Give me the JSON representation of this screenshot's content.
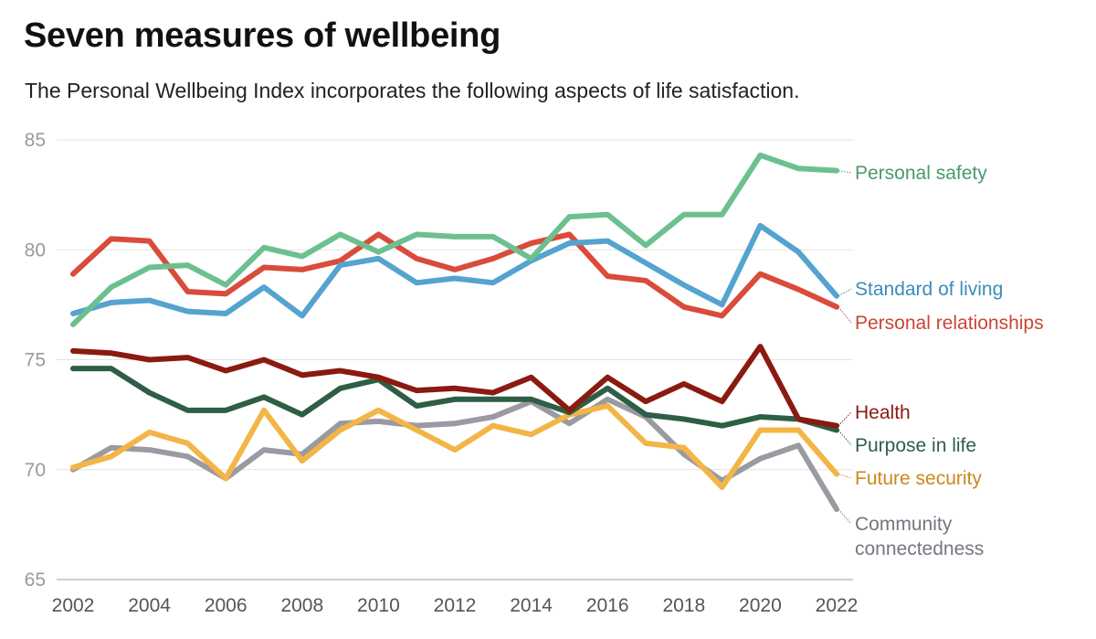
{
  "header": {
    "title": "Seven measures of wellbeing",
    "subtitle": "The Personal Wellbeing Index incorporates the following aspects of life satisfaction."
  },
  "chart_data": {
    "type": "line",
    "title": "Seven measures of wellbeing",
    "subtitle": "The Personal Wellbeing Index incorporates the following aspects of life satisfaction.",
    "x": [
      2002,
      2003,
      2004,
      2005,
      2006,
      2007,
      2008,
      2009,
      2010,
      2011,
      2012,
      2013,
      2014,
      2015,
      2016,
      2017,
      2018,
      2019,
      2020,
      2021,
      2022
    ],
    "x_ticks": [
      2002,
      2004,
      2006,
      2008,
      2010,
      2012,
      2014,
      2016,
      2018,
      2020,
      2022
    ],
    "y_ticks": [
      65,
      70,
      75,
      80,
      85
    ],
    "ylim": [
      65,
      85
    ],
    "grid": "horizontal",
    "legend": "direct labels at right end of lines",
    "series": [
      {
        "name": "Personal safety",
        "color": "#6cc08f",
        "text_color": "#4a9a6b",
        "values": [
          76.6,
          78.3,
          79.2,
          79.3,
          78.4,
          80.1,
          79.7,
          80.7,
          79.9,
          80.7,
          80.6,
          80.6,
          79.6,
          81.5,
          81.6,
          80.2,
          81.6,
          81.6,
          84.3,
          83.7,
          83.6
        ]
      },
      {
        "name": "Standard of living",
        "color": "#55a3cf",
        "text_color": "#3d8cb8",
        "values": [
          77.1,
          77.6,
          77.7,
          77.2,
          77.1,
          78.3,
          77.0,
          79.3,
          79.6,
          78.5,
          78.7,
          78.5,
          79.5,
          80.3,
          80.4,
          79.4,
          78.4,
          77.5,
          81.1,
          79.9,
          77.9
        ]
      },
      {
        "name": "Personal relationships",
        "color": "#d94b3b",
        "text_color": "#cc4436",
        "values": [
          78.9,
          80.5,
          80.4,
          78.1,
          78.0,
          79.2,
          79.1,
          79.5,
          80.7,
          79.6,
          79.1,
          79.6,
          80.3,
          80.7,
          78.8,
          78.6,
          77.4,
          77.0,
          78.9,
          78.2,
          77.4
        ]
      },
      {
        "name": "Health",
        "color": "#8b1a10",
        "text_color": "#8b1a10",
        "values": [
          75.4,
          75.3,
          75.0,
          75.1,
          74.5,
          75.0,
          74.3,
          74.5,
          74.2,
          73.6,
          73.7,
          73.5,
          74.2,
          72.7,
          74.2,
          73.1,
          73.9,
          73.1,
          75.6,
          72.3,
          72.0
        ]
      },
      {
        "name": "Purpose in life",
        "color": "#2e5e45",
        "text_color": "#2e5e45",
        "values": [
          74.6,
          74.6,
          73.5,
          72.7,
          72.7,
          73.3,
          72.5,
          73.7,
          74.1,
          72.9,
          73.2,
          73.2,
          73.2,
          72.6,
          73.7,
          72.5,
          72.3,
          72.0,
          72.4,
          72.3,
          71.8
        ]
      },
      {
        "name": "Future security",
        "color": "#f2b546",
        "text_color": "#c98a1d",
        "values": [
          70.1,
          70.6,
          71.7,
          71.2,
          69.6,
          72.7,
          70.4,
          71.8,
          72.7,
          71.8,
          70.9,
          72.0,
          71.6,
          72.5,
          72.9,
          71.2,
          71.0,
          69.2,
          71.8,
          71.8,
          69.8
        ]
      },
      {
        "name": "Community connectedness",
        "name_lines": [
          "Community",
          "connectedness"
        ],
        "color": "#9b99a2",
        "text_color": "#777580",
        "values": [
          70.0,
          71.0,
          70.9,
          70.6,
          69.6,
          70.9,
          70.7,
          72.1,
          72.2,
          72.0,
          72.1,
          72.4,
          73.1,
          72.1,
          73.2,
          72.4,
          70.7,
          69.5,
          70.5,
          71.1,
          68.2
        ]
      }
    ]
  }
}
